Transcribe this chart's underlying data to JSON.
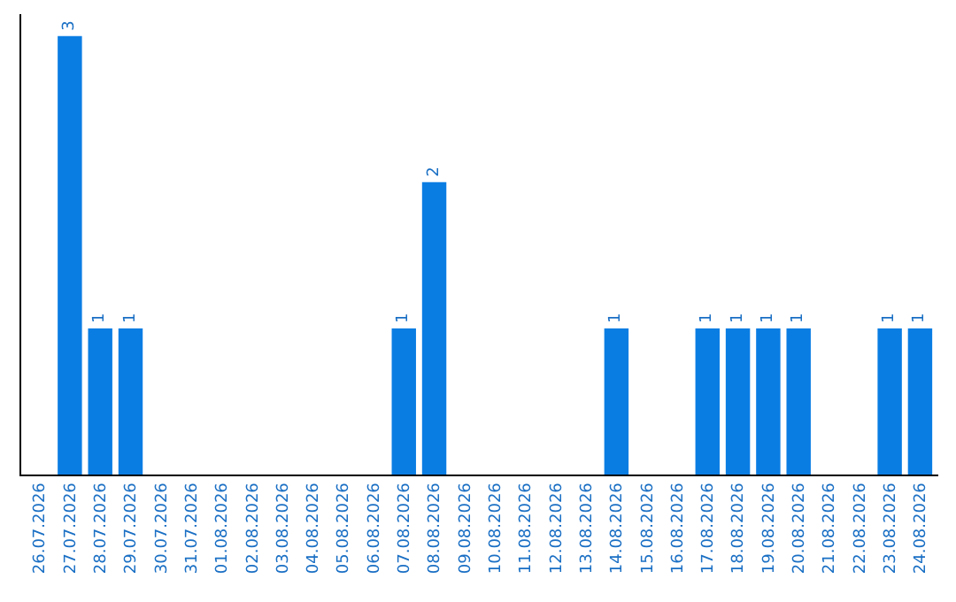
{
  "chart_data": {
    "type": "bar",
    "categories": [
      "26.07.2026",
      "27.07.2026",
      "28.07.2026",
      "29.07.2026",
      "30.07.2026",
      "31.07.2026",
      "01.08.2026",
      "02.08.2026",
      "03.08.2026",
      "04.08.2026",
      "05.08.2026",
      "06.08.2026",
      "07.08.2026",
      "08.08.2026",
      "09.08.2026",
      "10.08.2026",
      "11.08.2026",
      "12.08.2026",
      "13.08.2026",
      "14.08.2026",
      "15.08.2026",
      "16.08.2026",
      "17.08.2026",
      "18.08.2026",
      "19.08.2026",
      "20.08.2026",
      "21.08.2026",
      "22.08.2026",
      "23.08.2026",
      "24.08.2026"
    ],
    "values": [
      0,
      3,
      1,
      1,
      0,
      0,
      0,
      0,
      0,
      0,
      0,
      0,
      1,
      2,
      0,
      0,
      0,
      0,
      0,
      1,
      0,
      0,
      1,
      1,
      1,
      1,
      0,
      0,
      1,
      1
    ],
    "value_labels": [
      null,
      "3",
      "1",
      "1",
      null,
      null,
      null,
      null,
      null,
      null,
      null,
      null,
      "1",
      "2",
      null,
      null,
      null,
      null,
      null,
      "1",
      null,
      null,
      "1",
      "1",
      "1",
      "1",
      null,
      null,
      "1",
      "1"
    ],
    "color": "#0a7de3",
    "ylim": [
      0,
      3.15
    ],
    "tick_labels": "x",
    "grid": false
  }
}
